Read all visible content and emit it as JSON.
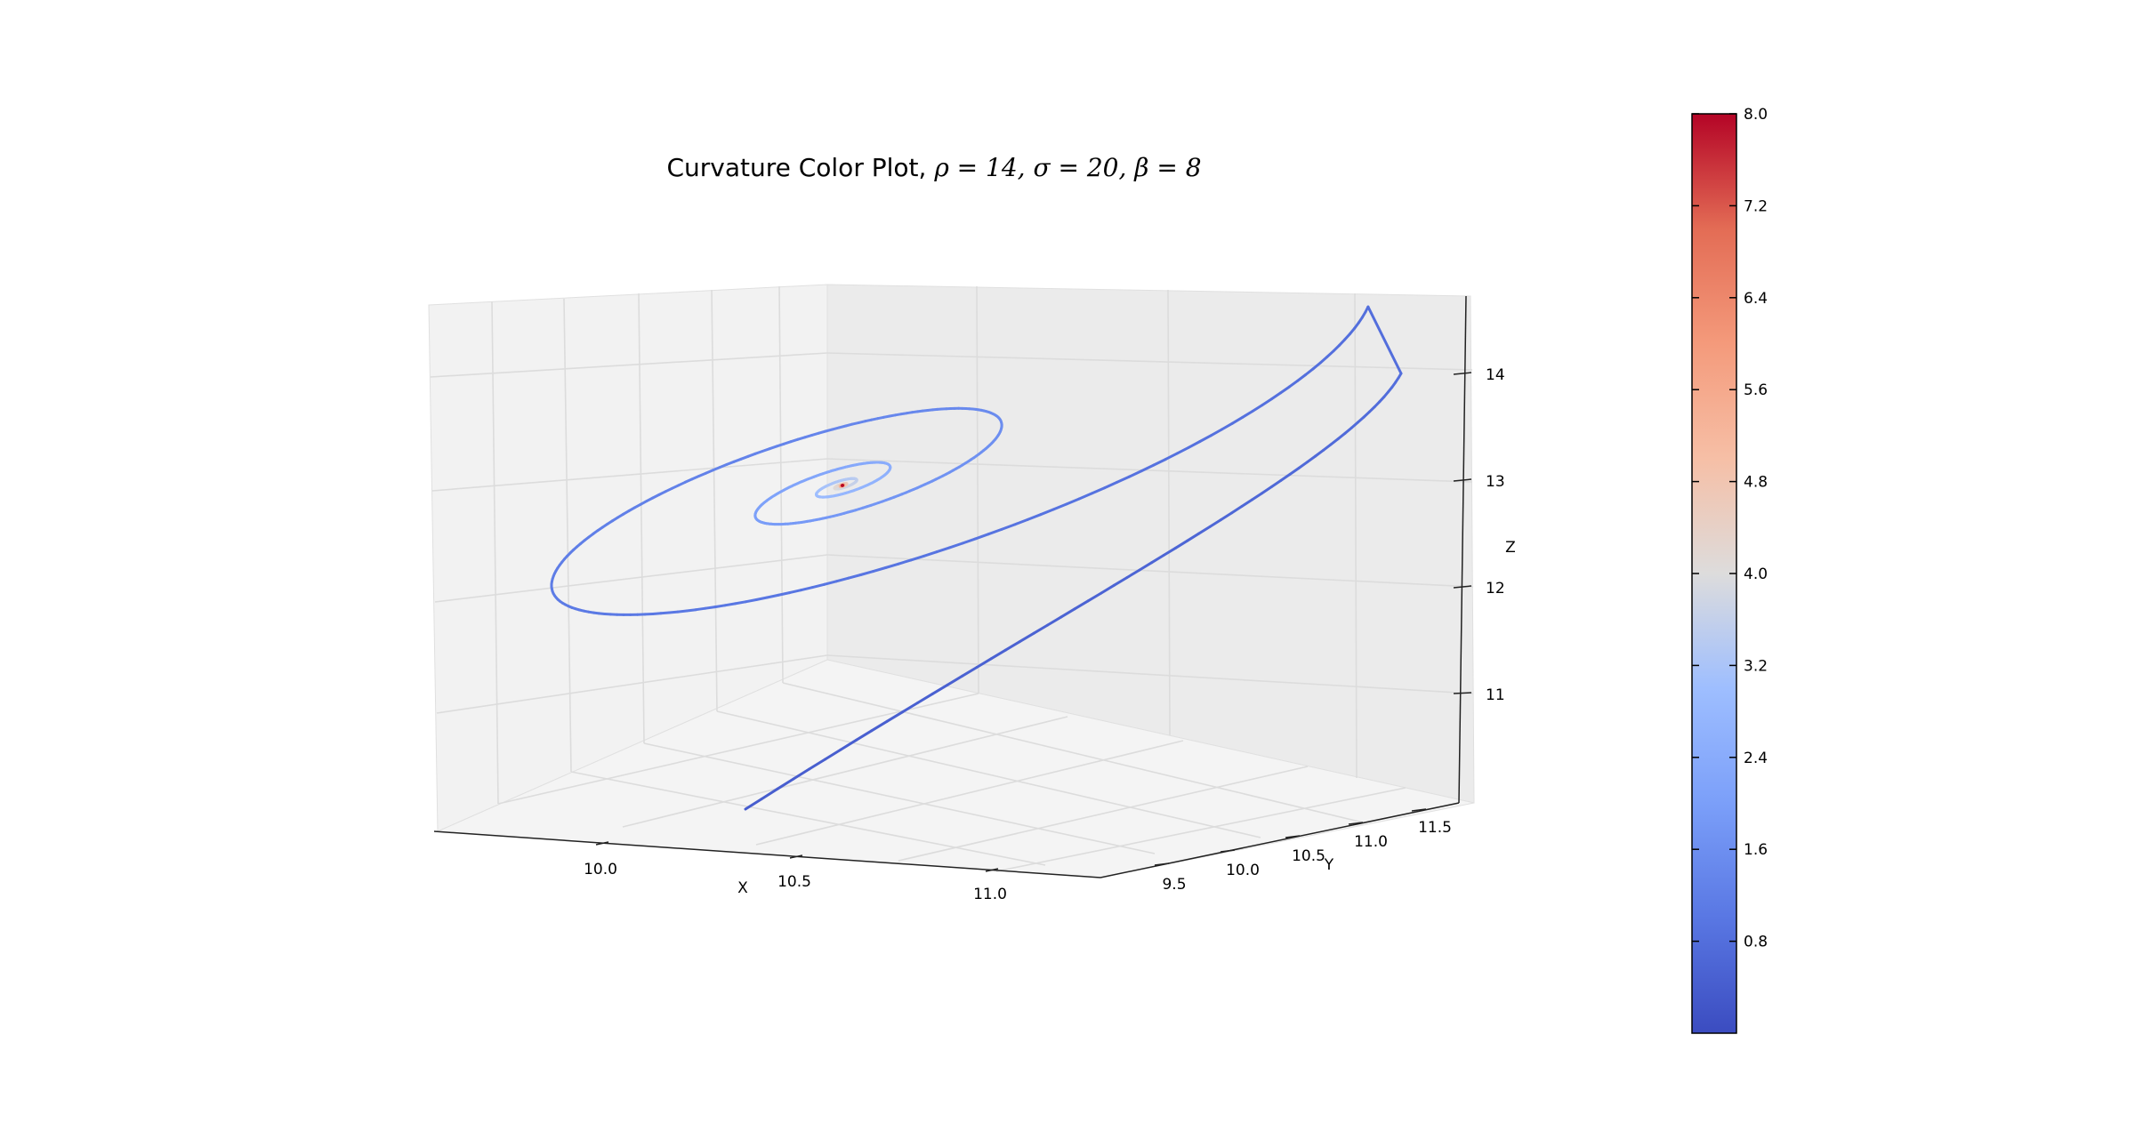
{
  "chart_data": {
    "type": "line",
    "title": {
      "prefix": "Curvature Color Plot, ",
      "params": "ρ = 14,  σ = 20,  β = 8"
    },
    "xlabel": "X",
    "ylabel": "Y",
    "zlabel": "Z",
    "xticks": [
      "10.0",
      "10.5",
      "11.0"
    ],
    "yticks": [
      "9.5",
      "10.0",
      "10.5",
      "11.0",
      "11.5"
    ],
    "zticks": [
      "11",
      "12",
      "13",
      "14"
    ],
    "grid": true,
    "colormap": "coolwarm",
    "colorbar": {
      "min": 0,
      "max": 8.0,
      "ticks": [
        "0.8",
        "1.6",
        "2.4",
        "3.2",
        "4.0",
        "4.8",
        "5.6",
        "6.4",
        "7.2",
        "8.0"
      ]
    },
    "series": [
      {
        "description": "Lorenz trajectory spiraling into fixed point, colored by curvature",
        "start": {
          "x": 10.47,
          "y": 9.3,
          "z": 10.2
        },
        "end": {
          "x": 10.58,
          "y": 10.58,
          "z": 13.0
        },
        "curvature_range": [
          0.2,
          8.0
        ]
      }
    ],
    "colors": {
      "low": "#3b4cc0",
      "mid": "#dddddd",
      "high": "#b40426"
    }
  }
}
